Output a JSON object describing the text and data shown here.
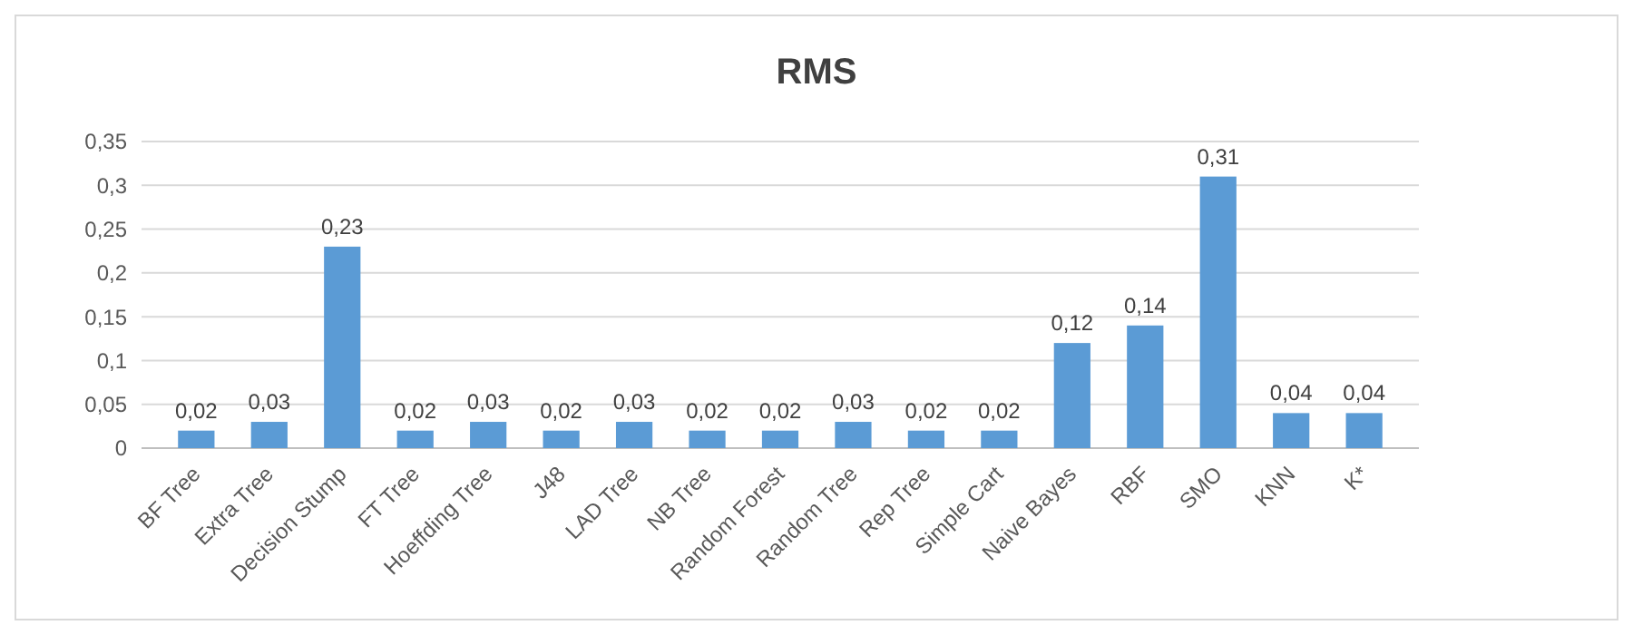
{
  "chart_data": {
    "type": "bar",
    "title": "RMS",
    "categories": [
      "BF Tree",
      "Extra Tree",
      "Decision Stump",
      "FT Tree",
      "Hoeffding Tree",
      "J48",
      "LAD Tree",
      "NB Tree",
      "Random Forest",
      "Random Tree",
      "Rep Tree",
      "Simple Cart",
      "Naive Bayes",
      "RBF",
      "SMO",
      "KNN",
      "K*"
    ],
    "values": [
      0.02,
      0.03,
      0.23,
      0.02,
      0.03,
      0.02,
      0.03,
      0.02,
      0.02,
      0.03,
      0.02,
      0.02,
      0.12,
      0.14,
      0.31,
      0.04,
      0.04
    ],
    "value_labels": [
      "0,02",
      "0,03",
      "0,23",
      "0,02",
      "0,03",
      "0,02",
      "0,03",
      "0,02",
      "0,02",
      "0,03",
      "0,02",
      "0,02",
      "0,12",
      "0,14",
      "0,31",
      "0,04",
      "0,04"
    ],
    "color": "#5b9bd5",
    "ylim": [
      0,
      0.35
    ],
    "yticks": [
      0,
      {
        "value": 0.05,
        "label": "0,05"
      },
      {
        "value": 0.1,
        "label": "0,1"
      },
      {
        "value": 0.15,
        "label": "0,15"
      },
      {
        "value": 0.2,
        "label": "0,2"
      },
      {
        "value": 0.25,
        "label": "0,25"
      },
      {
        "value": 0.3,
        "label": "0,3"
      },
      {
        "value": 0.35,
        "label": "0,35"
      }
    ],
    "grid": "y"
  }
}
